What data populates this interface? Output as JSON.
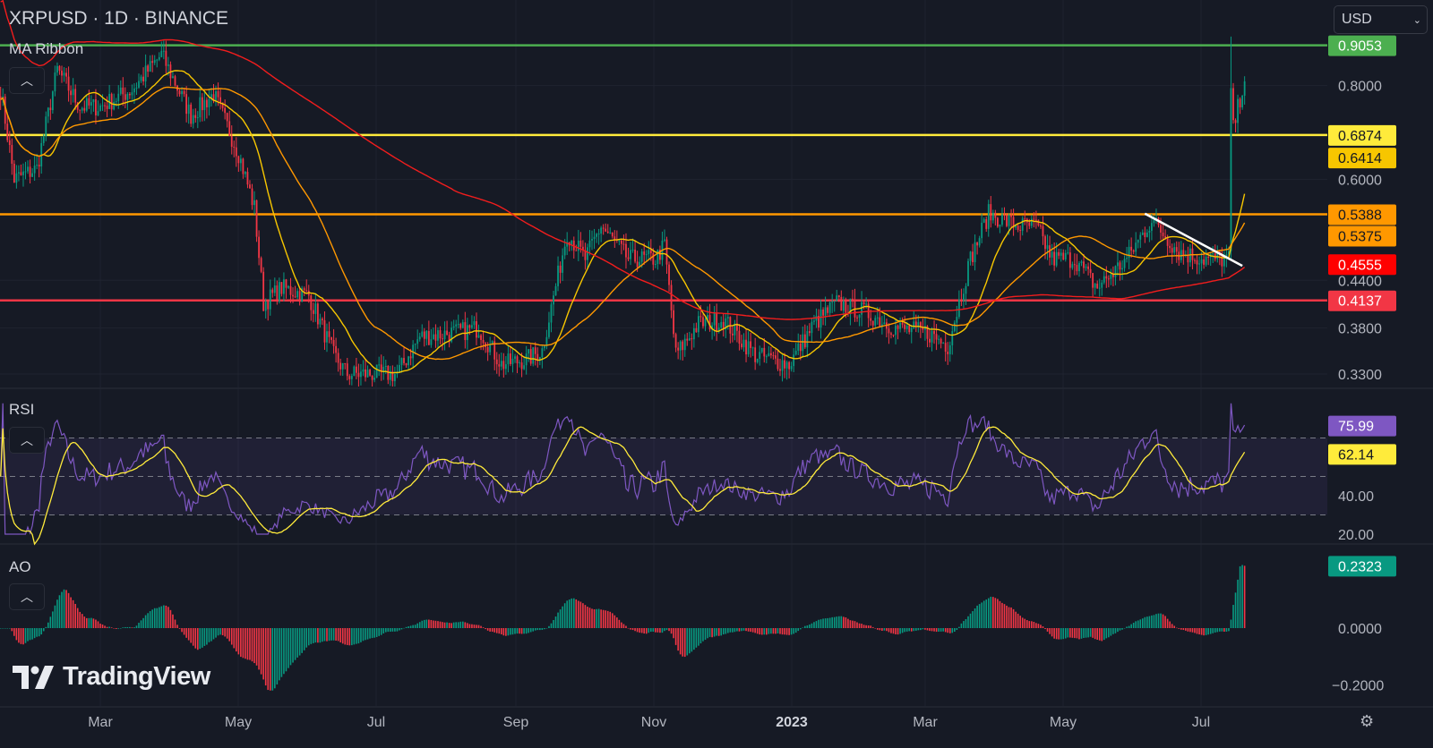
{
  "header": {
    "symbol_title": "XRPUSD · 1D · BINANCE",
    "currency": "USD"
  },
  "panes": {
    "main_label": "MA Ribbon",
    "rsi_label": "RSI",
    "ao_label": "AO"
  },
  "logo": {
    "text": "TradingView"
  },
  "icons": {
    "collapse": "chevron-up-icon",
    "currency_dropdown": "chevron-down-icon",
    "settings": "gear-icon"
  },
  "colors": {
    "background": "#161a25",
    "up": "#089981",
    "down": "#f23645",
    "ma_fast": "#f7c600",
    "ma_mid": "#ff9800",
    "ma_slow": "#f21d1d",
    "rsi": "#7e57c2",
    "rsi_ma": "#ffeb3b"
  },
  "chart_data": {
    "type": "candlestick",
    "symbol": "XRPUSD",
    "interval": "1D",
    "exchange": "BINANCE",
    "price_scale": "log",
    "price_ticks": [
      "0.8000",
      "0.6000",
      "0.4400",
      "0.3800",
      "0.3300"
    ],
    "x_ticks": [
      "Mar",
      "May",
      "Jul",
      "Sep",
      "Nov",
      "2023",
      "Mar",
      "May",
      "Jul"
    ],
    "approx_closes": [
      [
        "2022-01-16",
        0.79
      ],
      [
        "2022-01-22",
        0.6
      ],
      [
        "2022-02-01",
        0.62
      ],
      [
        "2022-02-10",
        0.84
      ],
      [
        "2022-02-20",
        0.75
      ],
      [
        "2022-03-01",
        0.75
      ],
      [
        "2022-03-15",
        0.79
      ],
      [
        "2022-03-28",
        0.88
      ],
      [
        "2022-04-10",
        0.73
      ],
      [
        "2022-04-20",
        0.78
      ],
      [
        "2022-05-01",
        0.65
      ],
      [
        "2022-05-08",
        0.55
      ],
      [
        "2022-05-12",
        0.41
      ],
      [
        "2022-05-20",
        0.43
      ],
      [
        "2022-06-01",
        0.42
      ],
      [
        "2022-06-12",
        0.35
      ],
      [
        "2022-06-18",
        0.33
      ],
      [
        "2022-07-01",
        0.33
      ],
      [
        "2022-07-10",
        0.33
      ],
      [
        "2022-07-20",
        0.37
      ],
      [
        "2022-08-05",
        0.375
      ],
      [
        "2022-08-15",
        0.38
      ],
      [
        "2022-08-25",
        0.34
      ],
      [
        "2022-09-05",
        0.345
      ],
      [
        "2022-09-12",
        0.355
      ],
      [
        "2022-09-23",
        0.51
      ],
      [
        "2022-10-01",
        0.47
      ],
      [
        "2022-10-08",
        0.52
      ],
      [
        "2022-10-20",
        0.47
      ],
      [
        "2022-11-01",
        0.47
      ],
      [
        "2022-11-05",
        0.49
      ],
      [
        "2022-11-10",
        0.35
      ],
      [
        "2022-11-20",
        0.385
      ],
      [
        "2022-12-01",
        0.39
      ],
      [
        "2022-12-15",
        0.35
      ],
      [
        "2022-12-30",
        0.34
      ],
      [
        "2023-01-10",
        0.385
      ],
      [
        "2023-01-20",
        0.41
      ],
      [
        "2023-02-01",
        0.4
      ],
      [
        "2023-02-15",
        0.38
      ],
      [
        "2023-03-01",
        0.375
      ],
      [
        "2023-03-10",
        0.36
      ],
      [
        "2023-03-20",
        0.47
      ],
      [
        "2023-03-28",
        0.54
      ],
      [
        "2023-04-10",
        0.52
      ],
      [
        "2023-04-18",
        0.52
      ],
      [
        "2023-04-25",
        0.47
      ],
      [
        "2023-05-05",
        0.47
      ],
      [
        "2023-05-15",
        0.43
      ],
      [
        "2023-05-28",
        0.47
      ],
      [
        "2023-06-08",
        0.53
      ],
      [
        "2023-06-20",
        0.48
      ],
      [
        "2023-07-01",
        0.47
      ],
      [
        "2023-07-12",
        0.47
      ],
      [
        "2023-07-13",
        0.79
      ],
      [
        "2023-07-14",
        0.7
      ],
      [
        "2023-07-19",
        0.82
      ]
    ],
    "horizontal_levels": [
      {
        "price": 0.9053,
        "label": "0.9053",
        "color": "#4caf50",
        "text_color": "#ffffff"
      },
      {
        "price": 0.6874,
        "label": "0.6874",
        "color": "#ffeb3b",
        "text_color": "#131722"
      },
      {
        "price": 0.5388,
        "label": "0.5388",
        "color": "#ff9800",
        "text_color": "#131722"
      },
      {
        "price": 0.4137,
        "label": "0.4137",
        "color": "#f23645",
        "text_color": "#ffffff"
      }
    ],
    "price_badges": [
      {
        "price": 0.6414,
        "label": "0.6414",
        "color": "#f7c600",
        "text_color": "#131722"
      },
      {
        "price": 0.5375,
        "label": "0.5375",
        "color": "#ff9800",
        "text_color": "#131722"
      },
      {
        "price": 0.4555,
        "label": "0.4555",
        "color": "#ff0000",
        "text_color": "#ffffff"
      }
    ],
    "trendline": {
      "from": [
        "2023-06-05",
        0.54
      ],
      "to": [
        "2023-07-18",
        0.46
      ],
      "color": "#ffffff"
    },
    "rsi": {
      "ticks": [
        "40.00",
        "20.00"
      ],
      "bands": [
        70,
        50,
        30
      ],
      "range": [
        15,
        90
      ],
      "value": "75.99",
      "ma_value": "62.14"
    },
    "ao": {
      "ticks": [
        "0.0000",
        "−0.2000"
      ],
      "range": [
        -0.24,
        0.26
      ],
      "value": "0.2323",
      "value_color": "#089981"
    }
  }
}
